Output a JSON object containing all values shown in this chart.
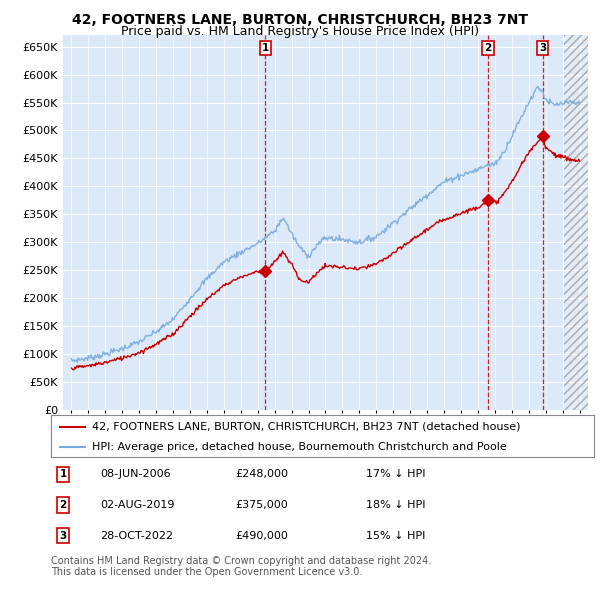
{
  "title": "42, FOOTNERS LANE, BURTON, CHRISTCHURCH, BH23 7NT",
  "subtitle": "Price paid vs. HM Land Registry's House Price Index (HPI)",
  "legend_line1": "42, FOOTNERS LANE, BURTON, CHRISTCHURCH, BH23 7NT (detached house)",
  "legend_line2": "HPI: Average price, detached house, Bournemouth Christchurch and Poole",
  "footnote": "Contains HM Land Registry data © Crown copyright and database right 2024.\nThis data is licensed under the Open Government Licence v3.0.",
  "transactions": [
    {
      "num": 1,
      "date": "08-JUN-2006",
      "price": 248000,
      "pct": "17%",
      "dir": "↓",
      "year": 2006.44
    },
    {
      "num": 2,
      "date": "02-AUG-2019",
      "price": 375000,
      "pct": "18%",
      "dir": "↓",
      "year": 2019.59
    },
    {
      "num": 3,
      "date": "28-OCT-2022",
      "price": 490000,
      "pct": "15%",
      "dir": "↓",
      "year": 2022.83
    }
  ],
  "ylabel_ticks": [
    0,
    50000,
    100000,
    150000,
    200000,
    250000,
    300000,
    350000,
    400000,
    450000,
    500000,
    550000,
    600000,
    650000
  ],
  "xlim": [
    1994.5,
    2025.5
  ],
  "ylim": [
    0,
    670000
  ],
  "background_color": "#dce9f8",
  "grid_color": "#ffffff",
  "red_color": "#cc0000",
  "blue_color": "#7aaadd",
  "title_fontsize": 10,
  "subtitle_fontsize": 9,
  "tick_fontsize": 8,
  "legend_fontsize": 8,
  "footnote_fontsize": 7
}
